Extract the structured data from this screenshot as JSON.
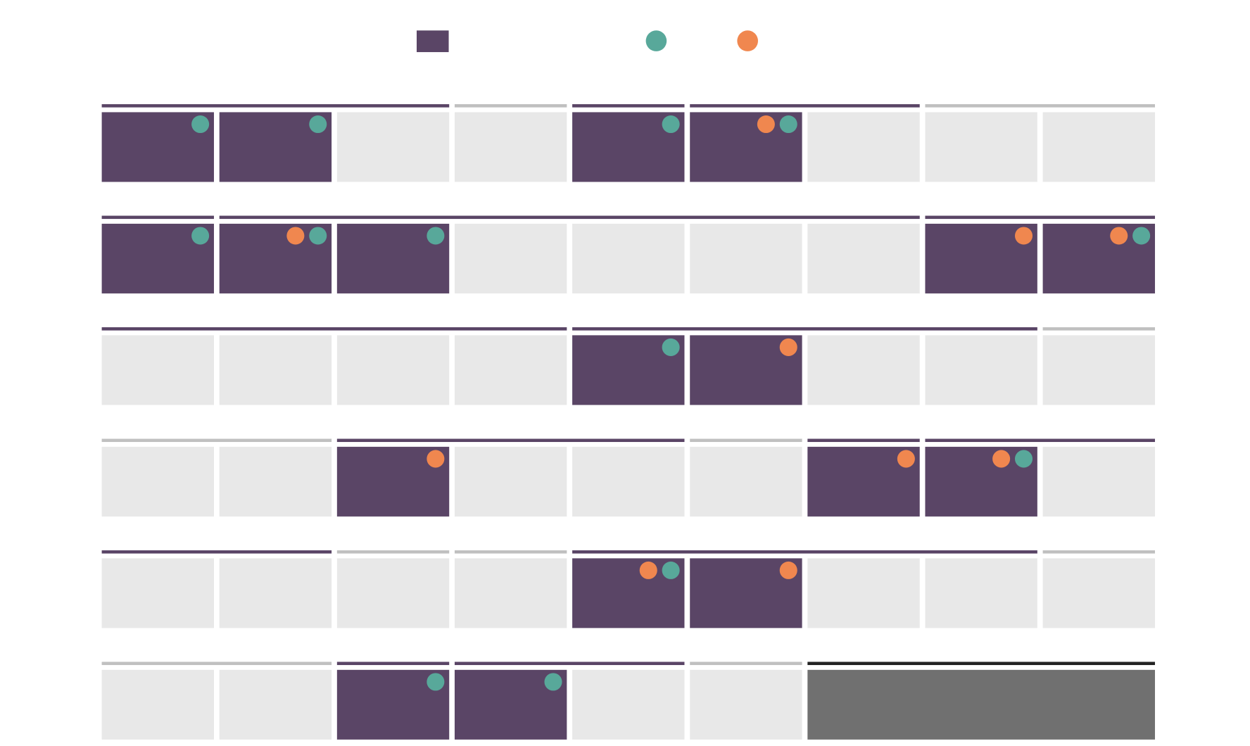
{
  "colors": {
    "fill": "#5a4566",
    "empty": "#e8e8e8",
    "teal": "#58a89a",
    "orange": "#f0874f",
    "block": "#707070"
  },
  "legend": [
    {
      "shape": "square",
      "color": "#5a4566"
    },
    {
      "shape": "dot",
      "color": "#58a89a"
    },
    {
      "shape": "dot",
      "color": "#f0874f"
    }
  ],
  "rows": [
    {
      "groups": [
        {
          "span": 3,
          "color": "#5a4566"
        },
        {
          "span": 1,
          "color": "#c0c0c0"
        },
        {
          "span": 1,
          "color": "#5a4566"
        },
        {
          "span": 2,
          "color": "#5a4566"
        },
        {
          "span": 2,
          "color": "#c0c0c0"
        }
      ],
      "cells": [
        {
          "fill": true,
          "teal": true,
          "orange": false
        },
        {
          "fill": true,
          "teal": true,
          "orange": false
        },
        {
          "fill": false,
          "teal": false,
          "orange": false
        },
        {
          "fill": false,
          "teal": false,
          "orange": false
        },
        {
          "fill": true,
          "teal": true,
          "orange": false
        },
        {
          "fill": true,
          "teal": true,
          "orange": true
        },
        {
          "fill": false,
          "teal": false,
          "orange": false
        },
        {
          "fill": false,
          "teal": false,
          "orange": false
        },
        {
          "fill": false,
          "teal": false,
          "orange": false
        }
      ]
    },
    {
      "groups": [
        {
          "span": 1,
          "color": "#5a4566"
        },
        {
          "span": 6,
          "color": "#5a4566"
        },
        {
          "span": 2,
          "color": "#5a4566"
        }
      ],
      "cells": [
        {
          "fill": true,
          "teal": true,
          "orange": false
        },
        {
          "fill": true,
          "teal": true,
          "orange": true
        },
        {
          "fill": true,
          "teal": true,
          "orange": false
        },
        {
          "fill": false,
          "teal": false,
          "orange": false
        },
        {
          "fill": false,
          "teal": false,
          "orange": false
        },
        {
          "fill": false,
          "teal": false,
          "orange": false
        },
        {
          "fill": false,
          "teal": false,
          "orange": false
        },
        {
          "fill": true,
          "teal": false,
          "orange": true
        },
        {
          "fill": true,
          "teal": true,
          "orange": true
        }
      ]
    },
    {
      "groups": [
        {
          "span": 4,
          "color": "#5a4566"
        },
        {
          "span": 4,
          "color": "#5a4566"
        },
        {
          "span": 1,
          "color": "#c0c0c0"
        }
      ],
      "cells": [
        {
          "fill": false,
          "teal": false,
          "orange": false
        },
        {
          "fill": false,
          "teal": false,
          "orange": false
        },
        {
          "fill": false,
          "teal": false,
          "orange": false
        },
        {
          "fill": false,
          "teal": false,
          "orange": false
        },
        {
          "fill": true,
          "teal": true,
          "orange": false
        },
        {
          "fill": true,
          "teal": false,
          "orange": true
        },
        {
          "fill": false,
          "teal": false,
          "orange": false
        },
        {
          "fill": false,
          "teal": false,
          "orange": false
        },
        {
          "fill": false,
          "teal": false,
          "orange": false
        }
      ]
    },
    {
      "groups": [
        {
          "span": 2,
          "color": "#c0c0c0"
        },
        {
          "span": 3,
          "color": "#5a4566"
        },
        {
          "span": 1,
          "color": "#c0c0c0"
        },
        {
          "span": 1,
          "color": "#5a4566"
        },
        {
          "span": 2,
          "color": "#5a4566"
        }
      ],
      "cells": [
        {
          "fill": false,
          "teal": false,
          "orange": false
        },
        {
          "fill": false,
          "teal": false,
          "orange": false
        },
        {
          "fill": true,
          "teal": false,
          "orange": true
        },
        {
          "fill": false,
          "teal": false,
          "orange": false
        },
        {
          "fill": false,
          "teal": false,
          "orange": false
        },
        {
          "fill": false,
          "teal": false,
          "orange": false
        },
        {
          "fill": true,
          "teal": false,
          "orange": true
        },
        {
          "fill": true,
          "teal": true,
          "orange": true
        },
        {
          "fill": false,
          "teal": false,
          "orange": false
        }
      ]
    },
    {
      "groups": [
        {
          "span": 2,
          "color": "#5a4566"
        },
        {
          "span": 1,
          "color": "#c0c0c0"
        },
        {
          "span": 1,
          "color": "#c0c0c0"
        },
        {
          "span": 4,
          "color": "#5a4566"
        },
        {
          "span": 1,
          "color": "#c0c0c0"
        }
      ],
      "cells": [
        {
          "fill": false,
          "teal": false,
          "orange": false
        },
        {
          "fill": false,
          "teal": false,
          "orange": false
        },
        {
          "fill": false,
          "teal": false,
          "orange": false
        },
        {
          "fill": false,
          "teal": false,
          "orange": false
        },
        {
          "fill": true,
          "teal": true,
          "orange": true
        },
        {
          "fill": true,
          "teal": false,
          "orange": true
        },
        {
          "fill": false,
          "teal": false,
          "orange": false
        },
        {
          "fill": false,
          "teal": false,
          "orange": false
        },
        {
          "fill": false,
          "teal": false,
          "orange": false
        }
      ]
    },
    {
      "groups": [
        {
          "span": 2,
          "color": "#c0c0c0"
        },
        {
          "span": 1,
          "color": "#5a4566"
        },
        {
          "span": 2,
          "color": "#5a4566"
        },
        {
          "span": 1,
          "color": "#c0c0c0"
        },
        {
          "span": 3,
          "color": "#222222"
        }
      ],
      "cells": [
        {
          "fill": false,
          "teal": false,
          "orange": false
        },
        {
          "fill": false,
          "teal": false,
          "orange": false
        },
        {
          "fill": true,
          "teal": true,
          "orange": false
        },
        {
          "fill": true,
          "teal": true,
          "orange": false
        },
        {
          "fill": false,
          "teal": false,
          "orange": false
        },
        {
          "fill": false,
          "teal": false,
          "orange": false
        }
      ],
      "block": {
        "span": 3
      }
    }
  ]
}
